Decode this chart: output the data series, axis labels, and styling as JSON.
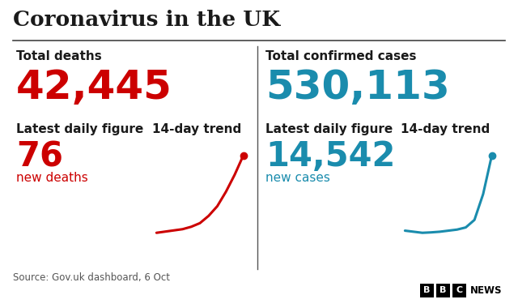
{
  "title": "Coronavirus in the UK",
  "left_panel": {
    "label": "Total deaths",
    "big_number": "42,445",
    "big_color": "#cc0000",
    "daily_label": "Latest daily figure",
    "trend_label": "14-day trend",
    "daily_number": "76",
    "daily_sub": "new deaths",
    "daily_color": "#cc0000",
    "trend_color": "#cc0000",
    "trend_x": [
      0,
      1,
      2,
      3,
      4,
      5,
      6,
      7,
      8,
      9,
      10
    ],
    "trend_y": [
      1.0,
      1.05,
      1.1,
      1.15,
      1.25,
      1.4,
      1.7,
      2.1,
      2.7,
      3.4,
      4.2
    ]
  },
  "right_panel": {
    "label": "Total confirmed cases",
    "big_number": "530,113",
    "big_color": "#1a8cad",
    "daily_label": "Latest daily figure",
    "trend_label": "14-day trend",
    "daily_number": "14,542",
    "daily_sub": "new cases",
    "daily_color": "#1a8cad",
    "trend_color": "#1a8cad",
    "trend_x": [
      0,
      1,
      2,
      3,
      4,
      5,
      6,
      7,
      8,
      9,
      10
    ],
    "trend_y": [
      1.5,
      1.45,
      1.4,
      1.42,
      1.45,
      1.5,
      1.55,
      1.65,
      2.0,
      3.2,
      5.0
    ]
  },
  "source": "Source: Gov.uk dashboard, 6 Oct",
  "bg_color": "#ffffff",
  "text_color": "#1a1a1a",
  "subtext_color": "#333333",
  "title_fontsize": 19,
  "label_fontsize": 11,
  "big_fontsize": 36,
  "daily_num_fontsize": 30,
  "daily_sub_fontsize": 11,
  "source_fontsize": 8.5
}
